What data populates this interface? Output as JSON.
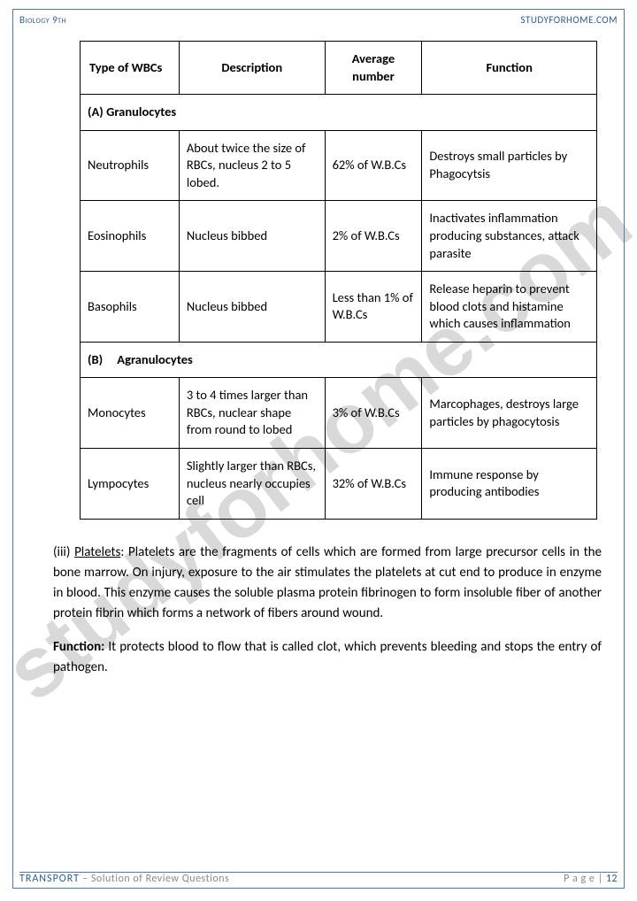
{
  "header": {
    "left": "Biology 9th",
    "right": "STUDYFORHOME.COM"
  },
  "watermark": "studyforhome.com",
  "table": {
    "headers": [
      "Type of WBCs",
      "Description",
      "Average number",
      "Function"
    ],
    "section_a": "(A) Granulocytes",
    "rows_a": [
      {
        "type": "Neutrophils",
        "desc": "About twice the size of RBCs, nucleus 2 to 5 lobed.",
        "num": "62% of W.B.Cs",
        "func": "Destroys small particles by Phagocytsis"
      },
      {
        "type": "Eosinophils",
        "desc": "Nucleus bibbed",
        "num": "2% of W.B.Cs",
        "func": "Inactivates inflammation producing substances, attack parasite"
      },
      {
        "type": "Basophils",
        "desc": "Nucleus bibbed",
        "num": "Less than 1% of W.B.Cs",
        "func": "Release heparin to prevent blood clots and histamine which causes inflammation"
      }
    ],
    "section_b_prefix": "(B)",
    "section_b_label": "Agranulocytes",
    "rows_b": [
      {
        "type": "Monocytes",
        "desc": "3 to 4 times larger than RBCs, nuclear shape from round to lobed",
        "num": "3% of W.B.Cs",
        "func": "Marcophages, destroys large particles by phagocytosis"
      },
      {
        "type": "Lympocytes",
        "desc": "Slightly larger than RBCs, nucleus nearly occupies cell",
        "num": "32% of W.B.Cs",
        "func": "Immune response by producing antibodies"
      }
    ],
    "col_widths": [
      "112px",
      "165px",
      "110px",
      "198px"
    ],
    "border_color": "#000000",
    "font_size": 14.5
  },
  "paragraphs": {
    "p1_num": "(iii)   ",
    "p1_label": "Platelets",
    "p1_text": ": Platelets are the fragments of cells which are formed from large precursor cells in the bone marrow. On injury, exposure to the air stimulates the platelets at cut end to produce in enzyme in blood. This enzyme causes the soluble plasma protein fibrinogen to form insoluble fiber of another protein fibrin which forms a network of fibers around wound.",
    "p2_label": "Function:",
    "p2_text": " It protects blood to flow that is called clot, which prevents bleeding and stops the entry of pathogen."
  },
  "footer": {
    "chapter": "TRANSPORT",
    "sub": " – Solution of Review Questions",
    "page_label": "P a g e  | ",
    "page_num": "12"
  },
  "colors": {
    "accent": "#2a5a9a",
    "border": "#4a7ab8",
    "muted": "#888888",
    "watermark": "rgba(120,120,120,0.28)",
    "text": "#000000",
    "background": "#ffffff"
  }
}
